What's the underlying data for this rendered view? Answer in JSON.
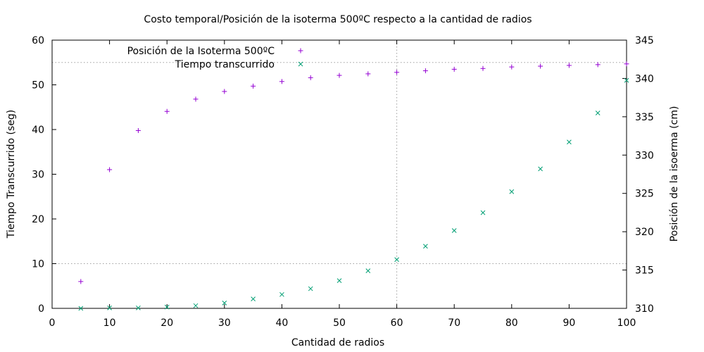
{
  "chart_data": {
    "type": "scatter",
    "title": "Costo temporal/Posición de la isoterma 500ºC respecto a la cantidad de radios",
    "xlabel": "Cantidad de radios",
    "ylabel": "Tiempo Transcurrido (seg)",
    "y2label": "Posición de la isoerma (cm)",
    "xlim": [
      0,
      100
    ],
    "ylim": [
      0,
      60
    ],
    "y2lim": [
      310,
      345
    ],
    "xticks": [
      0,
      10,
      20,
      30,
      40,
      50,
      60,
      70,
      80,
      90,
      100
    ],
    "yticks": [
      0,
      10,
      20,
      30,
      40,
      50,
      60
    ],
    "y2ticks": [
      310,
      315,
      320,
      325,
      330,
      335,
      340,
      345
    ],
    "grid": {
      "x": [
        60
      ],
      "y": [
        10,
        55
      ]
    },
    "legend_position": "top-center",
    "series": [
      {
        "name": "Posición de la Isoterma 500ºC",
        "axis": "y2",
        "marker": "plus",
        "color": "#9400d3",
        "x": [
          5,
          10,
          15,
          20,
          25,
          30,
          35,
          40,
          45,
          50,
          55,
          60,
          65,
          70,
          75,
          80,
          85,
          90,
          95,
          100
        ],
        "values": [
          313.5,
          328.1,
          333.2,
          335.7,
          337.3,
          338.3,
          339.0,
          339.6,
          340.1,
          340.4,
          340.6,
          340.8,
          341.0,
          341.2,
          341.3,
          341.5,
          341.6,
          341.7,
          341.8,
          341.9
        ]
      },
      {
        "name": "Tiempo transcurrido",
        "axis": "y",
        "marker": "cross",
        "color": "#009e73",
        "x": [
          5,
          10,
          15,
          20,
          25,
          30,
          35,
          40,
          45,
          50,
          55,
          60,
          65,
          70,
          75,
          80,
          85,
          90,
          95,
          100
        ],
        "values": [
          0,
          0.1,
          0.1,
          0.3,
          0.6,
          1.2,
          2.1,
          3.1,
          4.4,
          6.2,
          8.4,
          10.9,
          13.9,
          17.4,
          21.4,
          26.1,
          31.2,
          37.2,
          43.7,
          51.0
        ]
      }
    ]
  }
}
